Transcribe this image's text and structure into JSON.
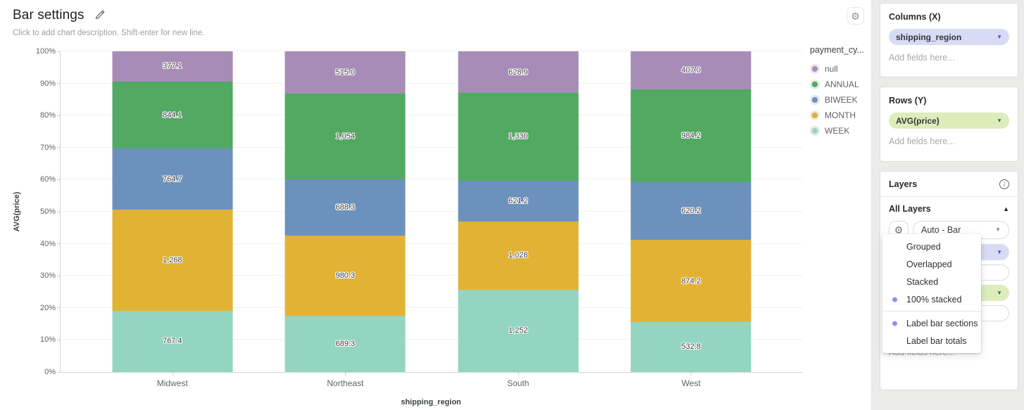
{
  "header": {
    "title": "Bar settings",
    "description_placeholder": "Click to add chart description. Shift-enter for new line."
  },
  "chart_data": {
    "type": "bar",
    "variant": "100% stacked",
    "xlabel": "shipping_region",
    "ylabel": "AVG(price)",
    "categories": [
      "Midwest",
      "Northeast",
      "South",
      "West"
    ],
    "y_ticks": [
      "0%",
      "10%",
      "20%",
      "30%",
      "40%",
      "50%",
      "60%",
      "70%",
      "80%",
      "90%",
      "100%"
    ],
    "ylim": [
      0,
      100
    ],
    "grid": "horizontal",
    "legend_position": "right",
    "series_bottom_to_top": [
      {
        "name": "WEEK",
        "color": "#94d5c2",
        "values": [
          767.4,
          689.3,
          1252,
          532.8
        ],
        "labels": [
          "767.4",
          "689.3",
          "1,252",
          "532.8"
        ]
      },
      {
        "name": "MONTH",
        "color": "#e2b235",
        "values": [
          1268,
          980.3,
          1028,
          874.2
        ],
        "labels": [
          "1,268",
          "980.3",
          "1,028",
          "874.2"
        ]
      },
      {
        "name": "BIWEEK",
        "color": "#6c91bd",
        "values": [
          764.7,
          688.3,
          621.2,
          620.2
        ],
        "labels": [
          "764.7",
          "688.3",
          "621.2",
          "620.2"
        ]
      },
      {
        "name": "ANNUAL",
        "color": "#52a962",
        "values": [
          844.1,
          1054,
          1330,
          984.2
        ],
        "labels": [
          "844.1",
          "1,054",
          "1,330",
          "984.2"
        ]
      },
      {
        "name": "null",
        "color": "#a78cb8",
        "values": [
          377.1,
          515.0,
          628.9,
          407.0
        ],
        "labels": [
          "377.1",
          "515.0",
          "628.9",
          "407.0"
        ]
      }
    ],
    "legend": {
      "title": "payment_cy...",
      "entries": [
        {
          "label": "null",
          "color": "#a78cb8"
        },
        {
          "label": "ANNUAL",
          "color": "#52a962"
        },
        {
          "label": "BIWEEK",
          "color": "#6c91bd"
        },
        {
          "label": "MONTH",
          "color": "#e2b235"
        },
        {
          "label": "WEEK",
          "color": "#94d5c2"
        }
      ]
    }
  },
  "sidebar": {
    "columns": {
      "title": "Columns (X)",
      "field": "shipping_region",
      "placeholder": "Add fields here..."
    },
    "rows": {
      "title": "Rows (Y)",
      "field": "AVG(price)",
      "placeholder": "Add fields here..."
    },
    "layers": {
      "title": "Layers",
      "group": "All Layers",
      "type_value": "Auto - Bar",
      "placeholder": "Add fields here..."
    },
    "menu": {
      "groups": [
        [
          {
            "label": "Grouped",
            "selected": false
          },
          {
            "label": "Overlapped",
            "selected": false
          },
          {
            "label": "Stacked",
            "selected": false
          },
          {
            "label": "100% stacked",
            "selected": true
          }
        ],
        [
          {
            "label": "Label bar sections",
            "selected": true
          },
          {
            "label": "Label bar totals",
            "selected": false
          }
        ]
      ]
    }
  },
  "colors": {
    "accent_lavender": "#d8daf6",
    "accent_green": "#dcedbb",
    "menu_dot": "#8a96ee",
    "sidebar_bg": "#ebebe9"
  }
}
